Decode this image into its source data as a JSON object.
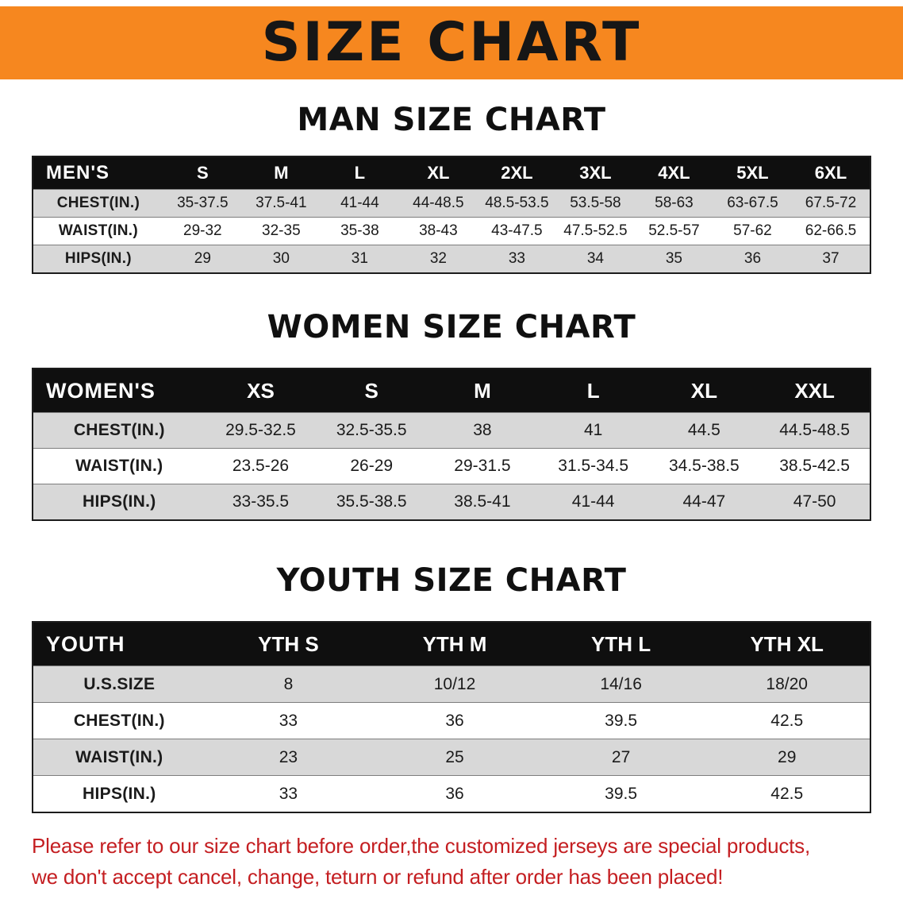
{
  "palette": {
    "banner-bg": "#f6871f",
    "header-bg": "#0f0f0f",
    "header-text": "#ffffff",
    "row-shade": "#d8d8d8",
    "note-red": "#c41e21",
    "ink": "#121212"
  },
  "banner": {
    "title": "SIZE CHART"
  },
  "sections": [
    {
      "heading": "MAN SIZE CHART",
      "table": {
        "label": "MEN'S",
        "columns": [
          "S",
          "M",
          "L",
          "XL",
          "2XL",
          "3XL",
          "4XL",
          "5XL",
          "6XL"
        ],
        "rows": [
          {
            "label": "CHEST(IN.)",
            "values": [
              "35-37.5",
              "37.5-41",
              "41-44",
              "44-48.5",
              "48.5-53.5",
              "53.5-58",
              "58-63",
              "63-67.5",
              "67.5-72"
            ]
          },
          {
            "label": "WAIST(IN.)",
            "values": [
              "29-32",
              "32-35",
              "35-38",
              "38-43",
              "43-47.5",
              "47.5-52.5",
              "52.5-57",
              "57-62",
              "62-66.5"
            ]
          },
          {
            "label": "HIPS(IN.)",
            "values": [
              "29",
              "30",
              "31",
              "32",
              "33",
              "34",
              "35",
              "36",
              "37"
            ]
          }
        ]
      }
    },
    {
      "heading": "WOMEN SIZE CHART",
      "table": {
        "label": "WOMEN'S",
        "columns": [
          "XS",
          "S",
          "M",
          "L",
          "XL",
          "XXL"
        ],
        "rows": [
          {
            "label": "CHEST(IN.)",
            "values": [
              "29.5-32.5",
              "32.5-35.5",
              "38",
              "41",
              "44.5",
              "44.5-48.5"
            ]
          },
          {
            "label": "WAIST(IN.)",
            "values": [
              "23.5-26",
              "26-29",
              "29-31.5",
              "31.5-34.5",
              "34.5-38.5",
              "38.5-42.5"
            ]
          },
          {
            "label": "HIPS(IN.)",
            "values": [
              "33-35.5",
              "35.5-38.5",
              "38.5-41",
              "41-44",
              "44-47",
              "47-50"
            ]
          }
        ]
      }
    },
    {
      "heading": "YOUTH SIZE CHART",
      "table": {
        "label": "YOUTH",
        "columns": [
          "YTH S",
          "YTH M",
          "YTH L",
          "YTH XL"
        ],
        "rows": [
          {
            "label": "U.S.SIZE",
            "values": [
              "8",
              "10/12",
              "14/16",
              "18/20"
            ]
          },
          {
            "label": "CHEST(IN.)",
            "values": [
              "33",
              "36",
              "39.5",
              "42.5"
            ]
          },
          {
            "label": "WAIST(IN.)",
            "values": [
              "23",
              "25",
              "27",
              "29"
            ]
          },
          {
            "label": "HIPS(IN.)",
            "values": [
              "33",
              "36",
              "39.5",
              "42.5"
            ]
          }
        ]
      }
    }
  ],
  "footer_note": {
    "line1": "Please refer to our size chart before order,the customized jerseys are special products,",
    "line2": "we don't accept cancel, change, teturn or refund after order has been placed!"
  }
}
